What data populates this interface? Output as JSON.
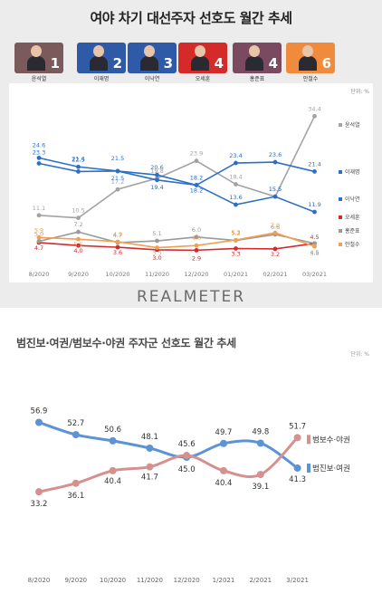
{
  "title_top": "여야 차기 대선주자 선호도 월간 추세",
  "unit_top": "단위: %",
  "candidates": [
    {
      "name": "윤석열",
      "rank": "1",
      "color": "#7a5a5a"
    },
    {
      "name": "이재명",
      "rank": "2",
      "color": "#2f5aa8"
    },
    {
      "name": "이낙연",
      "rank": "3",
      "color": "#2f5aa8"
    },
    {
      "name": "오세훈",
      "rank": "4",
      "color": "#d42a2a"
    },
    {
      "name": "홍준표",
      "rank": "4",
      "color": "#7a4a60"
    },
    {
      "name": "안철수",
      "rank": "6",
      "color": "#f08a3c"
    }
  ],
  "logo": "REALMETER",
  "title_bottom": "범진보·여권/범보수·야권 주자군 선호도 월간 추세",
  "unit_bottom": "단위: %",
  "chart_data": [
    {
      "type": "line",
      "categories": [
        "8/2020",
        "9/2020",
        "10/2020",
        "11/2020",
        "12/2020",
        "01/2021",
        "02/2021",
        "03/2021"
      ],
      "series": [
        {
          "name": "윤석열",
          "color": "#a3a3a3",
          "values": [
            11.1,
            10.5,
            17.2,
            19.8,
            23.9,
            18.4,
            15.5,
            34.4
          ]
        },
        {
          "name": "이재명",
          "color": "#2d6fc4",
          "values": [
            23.3,
            21.4,
            21.5,
            19.4,
            18.2,
            23.4,
            23.6,
            21.4
          ]
        },
        {
          "name": "이낙연",
          "color": "#2d6fc4",
          "values": [
            24.6,
            22.5,
            21.5,
            20.6,
            18.2,
            13.6,
            15.5,
            11.9
          ]
        },
        {
          "name": "오세훈",
          "color": "#d42a2a",
          "values": [
            4.7,
            4.0,
            3.6,
            3.0,
            2.9,
            3.3,
            3.2,
            4.5
          ]
        },
        {
          "name": "홍준표",
          "color": "#9a9a9a",
          "values": [
            5.0,
            7.2,
            4.7,
            5.1,
            6.0,
            5.2,
            6.6,
            4.5
          ]
        },
        {
          "name": "안철수",
          "color": "#f0a050",
          "values": [
            5.9,
            5.5,
            4.9,
            3.5,
            4.0,
            5.3,
            7.0,
            3.8
          ]
        }
      ],
      "ylim": [
        0,
        40
      ]
    },
    {
      "type": "line",
      "categories": [
        "8/2020",
        "9/2020",
        "10/2020",
        "11/2020",
        "12/2020",
        "1/2021",
        "2/2021",
        "3/2021"
      ],
      "series": [
        {
          "name": "범진보·여권",
          "color": "#5b93d6",
          "values": [
            56.9,
            52.7,
            50.6,
            48.1,
            45.0,
            49.7,
            49.8,
            41.3
          ]
        },
        {
          "name": "범보수·야권",
          "color": "#d59090",
          "values": [
            33.2,
            36.1,
            40.4,
            41.7,
            45.6,
            40.4,
            39.1,
            51.7
          ]
        }
      ],
      "ylim": [
        28,
        62
      ]
    }
  ]
}
